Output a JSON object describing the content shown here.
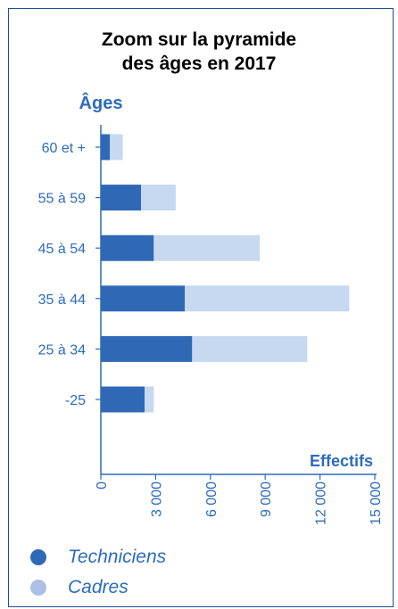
{
  "chart_data": {
    "type": "bar",
    "stacked": true,
    "orientation": "horizontal",
    "title": [
      "Zoom sur la pyramide",
      "des âges en 2017"
    ],
    "ylabel": "Âges",
    "xlabel": "Effectifs",
    "categories": [
      "60 et +",
      "55 à 59",
      "45 à 54",
      "35 à 44",
      "25 à 34",
      "-25"
    ],
    "series": [
      {
        "name": "Techniciens",
        "color": "#2f69b6",
        "values": [
          500,
          2200,
          2900,
          4600,
          5000,
          2400
        ]
      },
      {
        "name": "Cadres",
        "color": "#c7d8f1",
        "values": [
          700,
          1900,
          5800,
          9000,
          6300,
          500
        ]
      }
    ],
    "xlim": [
      0,
      15000
    ],
    "xticks": [
      0,
      3000,
      6000,
      9000,
      12000,
      15000
    ],
    "xtick_labels": [
      "0",
      "3 000",
      "6 000",
      "9 000",
      "12 000",
      "15 000"
    ],
    "grid": false,
    "legend_position": "bottom-left"
  }
}
